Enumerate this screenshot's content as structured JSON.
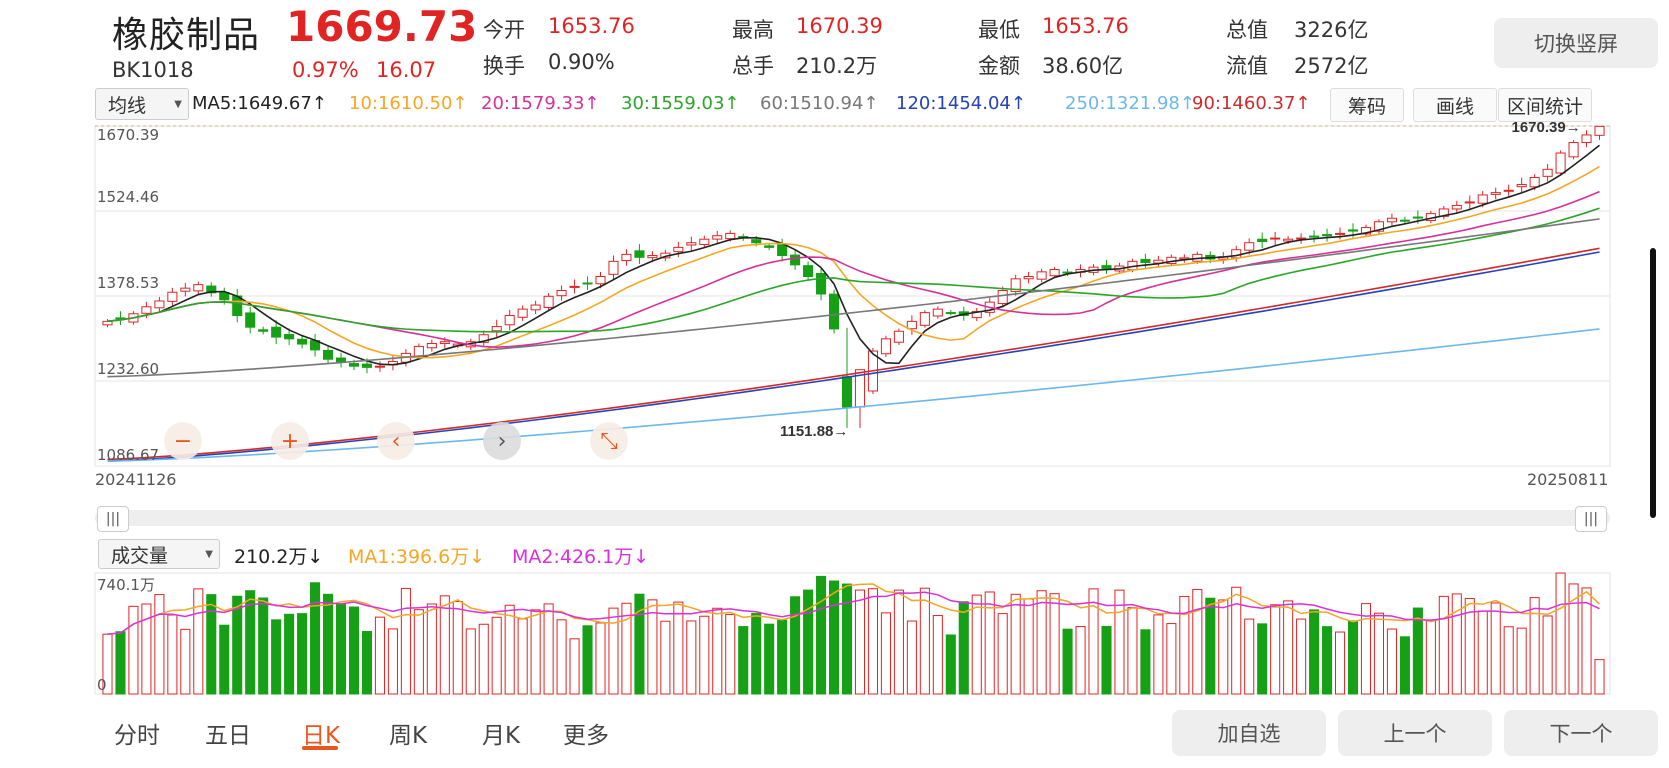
{
  "header": {
    "name": "橡胶制品",
    "code": "BK1018",
    "price": "1669.73",
    "change_pct": "0.97%",
    "change_abs": "16.07",
    "stats": [
      {
        "label": "今开",
        "value": "1653.76",
        "color": "#e02424"
      },
      {
        "label": "换手",
        "value": "0.90%",
        "color": "#333333"
      },
      {
        "label": "最高",
        "value": "1670.39",
        "color": "#e02424"
      },
      {
        "label": "总手",
        "value": "210.2万",
        "color": "#333333"
      },
      {
        "label": "最低",
        "value": "1653.76",
        "color": "#e02424"
      },
      {
        "label": "金额",
        "value": "38.60亿",
        "color": "#333333"
      },
      {
        "label": "总值",
        "value": "3226亿",
        "color": "#333333"
      },
      {
        "label": "流值",
        "value": "2572亿",
        "color": "#333333"
      }
    ],
    "switch_button": "切换竖屏"
  },
  "toolbar": {
    "indicator_select": "均线",
    "ma_items": [
      {
        "text": "MA5:1649.67↑",
        "color": "#222222"
      },
      {
        "text": "10:1610.50↑",
        "color": "#f5a623"
      },
      {
        "text": "20:1579.33↑",
        "color": "#d6309a"
      },
      {
        "text": "30:1559.03↑",
        "color": "#2aa52a"
      },
      {
        "text": "60:1510.94↑",
        "color": "#777777"
      },
      {
        "text": "120:1454.04↑",
        "color": "#2542b8"
      },
      {
        "text": "250:1321.98↑",
        "color": "#6ab8ee"
      },
      {
        "text": "90:1460.37↑",
        "color": "#d02a2a"
      }
    ],
    "buttons": [
      "筹码",
      "画线",
      "区间统计"
    ]
  },
  "main_chart": {
    "y_labels": [
      "1670.39",
      "1524.46",
      "1378.53",
      "1232.60",
      "1086.67"
    ],
    "x_start": "20241126",
    "x_end": "20250811",
    "high_label": "1670.39",
    "low_label": "1151.88"
  },
  "volume_panel": {
    "indicator_select": "成交量",
    "vol_value": "210.2万",
    "ma1": "MA1:396.6万",
    "ma2": "MA2:426.1万",
    "top_label": "740.1万",
    "bottom_label": "0"
  },
  "bottom_tabs": {
    "tabs": [
      "分时",
      "五日",
      "日K",
      "周K",
      "月K",
      "更多"
    ],
    "active": "日K",
    "buttons": [
      "加自选",
      "上一个",
      "下一个"
    ]
  },
  "chart_data": {
    "type": "candlestick",
    "title": "",
    "ylim": [
      1086.67,
      1670.39
    ],
    "y_ticks": [
      1086.67,
      1232.6,
      1378.53,
      1524.46,
      1670.39
    ],
    "x_range": [
      "20241126",
      "20250811"
    ],
    "close_series": [
      1335,
      1340,
      1348,
      1360,
      1370,
      1385,
      1392,
      1398,
      1384,
      1372,
      1345,
      1325,
      1318,
      1308,
      1305,
      1296,
      1286,
      1270,
      1265,
      1258,
      1256,
      1258,
      1266,
      1280,
      1292,
      1297,
      1300,
      1296,
      1300,
      1312,
      1326,
      1345,
      1356,
      1363,
      1378,
      1388,
      1395,
      1400,
      1412,
      1438,
      1450,
      1445,
      1448,
      1452,
      1462,
      1470,
      1476,
      1482,
      1486,
      1478,
      1470,
      1462,
      1448,
      1432,
      1412,
      1382,
      1322,
      1188,
      1220,
      1284,
      1305,
      1318,
      1335,
      1350,
      1356,
      1350,
      1345,
      1352,
      1368,
      1388,
      1408,
      1412,
      1420,
      1424,
      1418,
      1424,
      1428,
      1426,
      1430,
      1438,
      1436,
      1440,
      1445,
      1444,
      1450,
      1442,
      1446,
      1458,
      1470,
      1472,
      1478,
      1476,
      1478,
      1480,
      1482,
      1486,
      1490,
      1496,
      1506,
      1512,
      1508,
      1514,
      1520,
      1528,
      1534,
      1540,
      1552,
      1556,
      1560,
      1570,
      1582,
      1596,
      1624,
      1642,
      1655,
      1669.73
    ],
    "ma_lines": {
      "MA5": 1649.67,
      "MA10": 1610.5,
      "MA20": 1579.33,
      "MA30": 1559.03,
      "MA60": 1510.94,
      "MA120": 1454.04,
      "MA250": 1321.98,
      "MA90": 1460.37
    },
    "volume_unit": "万",
    "volume_max": 740.1,
    "volume_last": 210.2,
    "volume_ma1": 396.6,
    "volume_ma2": 426.1
  }
}
